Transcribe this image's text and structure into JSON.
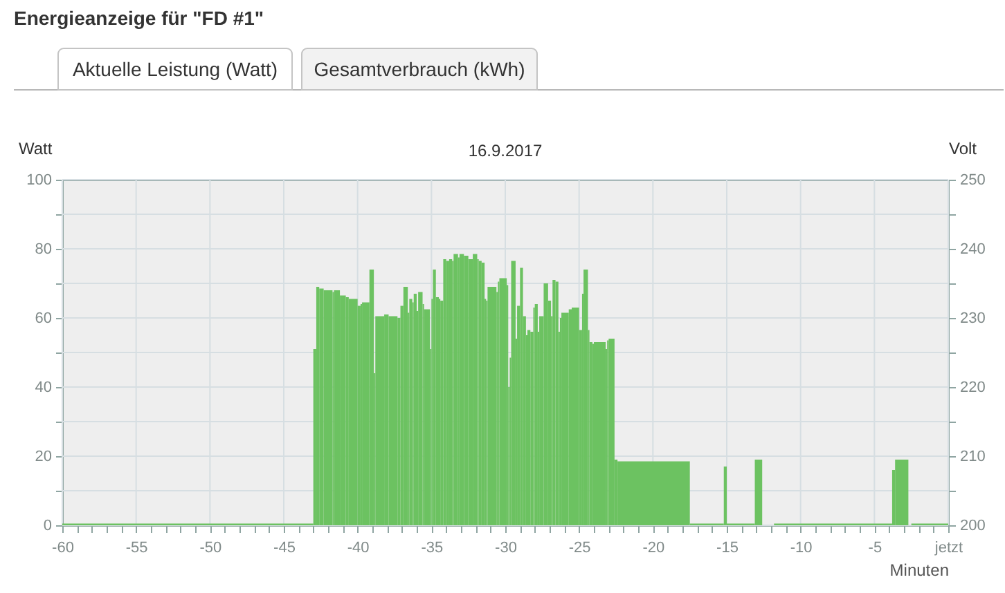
{
  "chart_data": {
    "type": "histogram",
    "title": "Energieanzeige für \"FD #1\"",
    "subtitle": "16.9.2017",
    "xlabel": "Minuten",
    "ylabel": "Watt",
    "y2label": "Volt",
    "annotations": [
      "Aktuelle Leistung (Watt)",
      "Gesamtverbrauch (kWh)"
    ],
    "bins": [
      -60,
      -43,
      -42.8,
      -42.6,
      -42.3,
      -41.7,
      -41.6,
      -41.2,
      -40.8,
      -40.6,
      -40,
      -39.8,
      -39.7,
      -39.2,
      -38.9,
      -38.8,
      -38.2,
      -37.9,
      -37.3,
      -37.1,
      -36.9,
      -36.6,
      -36.5,
      -36.3,
      -36.2,
      -36,
      -35.9,
      -35.6,
      -35.5,
      -35.1,
      -35,
      -34.9,
      -34.7,
      -34.5,
      -34.4,
      -34.2,
      -34,
      -33.8,
      -33.6,
      -33.5,
      -33.2,
      -33.1,
      -32.8,
      -32.5,
      -32.2,
      -31.9,
      -31.8,
      -31.6,
      -31.4,
      -31.3,
      -31.2,
      -30.6,
      -30.5,
      -30.4,
      -29.9,
      -29.8,
      -29.7,
      -29.6,
      -29.3,
      -29.2,
      -29,
      -28.8,
      -28.6,
      -28.5,
      -28.3,
      -28.1,
      -28,
      -27.8,
      -27.7,
      -27.4,
      -27.1,
      -26.9,
      -26.8,
      -26.6,
      -26.4,
      -26.3,
      -26.2,
      -25.7,
      -25.5,
      -25,
      -24.8,
      -24.7,
      -24.4,
      -24.3,
      -24.1,
      -24,
      -23.2,
      -23.1,
      -23,
      -22.6,
      -22.4,
      -17.5,
      -15.2,
      -15,
      -13.1,
      -12.6,
      -11.8,
      -3.8,
      -3.6,
      -2.7,
      -2.5,
      0
    ],
    "values": [
      0.5,
      51,
      69,
      68.5,
      68,
      67.5,
      68,
      66.5,
      66,
      65.5,
      63.5,
      64,
      64.5,
      74,
      44,
      60.5,
      61,
      60.5,
      60,
      63.5,
      69,
      61.5,
      65.5,
      64.5,
      67,
      62,
      67.5,
      64,
      62.5,
      51,
      65.5,
      74,
      66,
      65.5,
      65,
      77,
      76.5,
      77,
      76.5,
      78.5,
      77.5,
      78.5,
      78,
      77,
      78.5,
      77,
      76.5,
      76,
      65.5,
      65,
      69,
      67.5,
      70.5,
      71.5,
      69.5,
      40,
      48.5,
      76.5,
      54,
      63.5,
      74.5,
      60.5,
      55,
      56.5,
      56,
      63,
      64,
      56,
      60.5,
      70,
      65,
      60.5,
      71,
      70.5,
      56,
      60,
      61.5,
      62.5,
      63,
      56.5,
      67,
      74,
      56.5,
      53,
      52.5,
      53,
      51,
      53.5,
      54,
      19,
      18.5,
      0.5,
      17,
      0.5,
      19,
      null,
      0.5,
      16,
      19,
      null,
      0.5
    ],
    "color": "#6cc261",
    "xlim": [
      -60,
      0
    ],
    "xticks": [
      -60,
      {
        "value": -59,
        "label": null
      },
      {
        "value": -58,
        "label": null
      },
      {
        "value": -57,
        "label": null
      },
      {
        "value": -56,
        "label": null
      },
      -55,
      {
        "value": -54,
        "label": null
      },
      {
        "value": -53,
        "label": null
      },
      {
        "value": -52,
        "label": null
      },
      {
        "value": -51,
        "label": null
      },
      -50,
      {
        "value": -49,
        "label": null
      },
      {
        "value": -48,
        "label": null
      },
      {
        "value": -47,
        "label": null
      },
      {
        "value": -46,
        "label": null
      },
      -45,
      {
        "value": -44,
        "label": null
      },
      {
        "value": -43,
        "label": null
      },
      {
        "value": -42,
        "label": null
      },
      {
        "value": -41,
        "label": null
      },
      -40,
      {
        "value": -39,
        "label": null
      },
      {
        "value": -38,
        "label": null
      },
      {
        "value": -37,
        "label": null
      },
      {
        "value": -36,
        "label": null
      },
      -35,
      {
        "value": -34,
        "label": null
      },
      {
        "value": -33,
        "label": null
      },
      {
        "value": -32,
        "label": null
      },
      {
        "value": -31,
        "label": null
      },
      -30,
      {
        "value": -29,
        "label": null
      },
      {
        "value": -28,
        "label": null
      },
      {
        "value": -27,
        "label": null
      },
      {
        "value": -26,
        "label": null
      },
      -25,
      {
        "value": -24,
        "label": null
      },
      {
        "value": -23,
        "label": null
      },
      {
        "value": -22,
        "label": null
      },
      {
        "value": -21,
        "label": null
      },
      -20,
      {
        "value": -19,
        "label": null
      },
      {
        "value": -18,
        "label": null
      },
      {
        "value": -17,
        "label": null
      },
      {
        "value": -16,
        "label": null
      },
      -15,
      {
        "value": -14,
        "label": null
      },
      {
        "value": -13,
        "label": null
      },
      {
        "value": -12,
        "label": null
      },
      {
        "value": -11,
        "label": null
      },
      -10,
      {
        "value": -9,
        "label": null
      },
      {
        "value": -8,
        "label": null
      },
      {
        "value": -7,
        "label": null
      },
      {
        "value": -6,
        "label": null
      },
      -5,
      {
        "value": -4,
        "label": null
      },
      {
        "value": -3,
        "label": null
      },
      {
        "value": -2,
        "label": null
      },
      {
        "value": -1,
        "label": null
      },
      {
        "value": 0,
        "label": "jetzt"
      }
    ],
    "ylim": [
      0,
      100
    ],
    "yticks": [
      0,
      {
        "value": 10,
        "label": null
      },
      20,
      {
        "value": 30,
        "label": null
      },
      40,
      {
        "value": 50,
        "label": null
      },
      60,
      {
        "value": 70,
        "label": null
      },
      80,
      {
        "value": 90,
        "label": null
      },
      100
    ],
    "y2lim": [
      200,
      250
    ],
    "y2ticks": [
      200,
      {
        "value": 205,
        "label": null
      },
      210,
      {
        "value": 215,
        "label": null
      },
      220,
      {
        "value": 225,
        "label": null
      },
      230,
      {
        "value": 235,
        "label": null
      },
      240,
      {
        "value": 245,
        "label": null
      },
      250
    ],
    "grid": true
  }
}
